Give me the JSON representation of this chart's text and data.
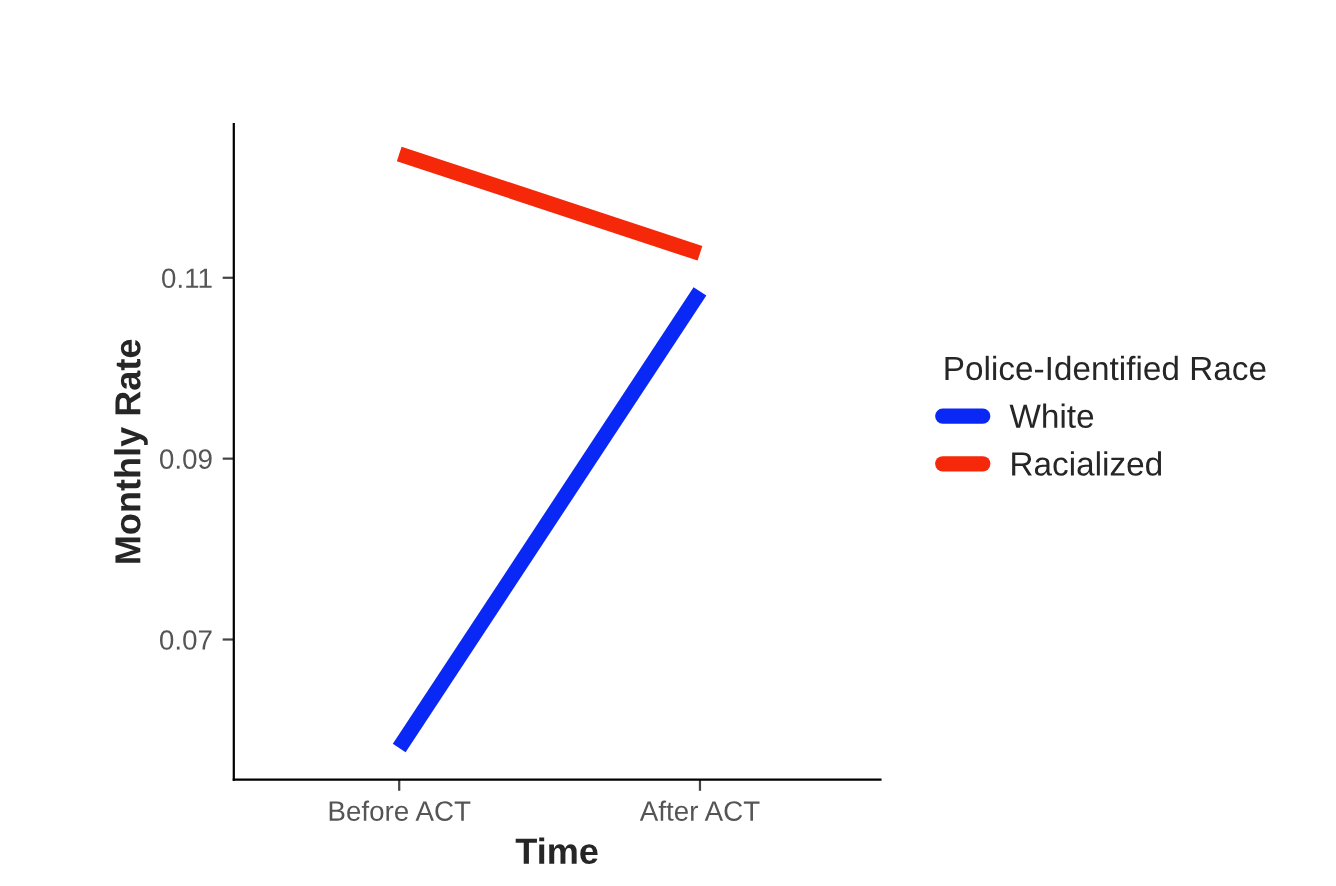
{
  "chart_data": {
    "type": "line",
    "xlabel": "Time",
    "ylabel": "Monthly Rate",
    "legend_title": "Police-Identified Race",
    "categories": [
      "Before ACT",
      "After ACT"
    ],
    "series": [
      {
        "name": "White",
        "color": "#0a28f5",
        "values": [
          0.058,
          0.1085
        ]
      },
      {
        "name": "Racialized",
        "color": "#f5280a",
        "values": [
          0.1237,
          0.1127
        ]
      }
    ],
    "ylim": [
      0.0545,
      0.127
    ],
    "yticks": [
      0.07,
      0.09,
      0.11
    ],
    "grid": false,
    "legend": "right",
    "marker": "none",
    "line_style": "solid"
  }
}
